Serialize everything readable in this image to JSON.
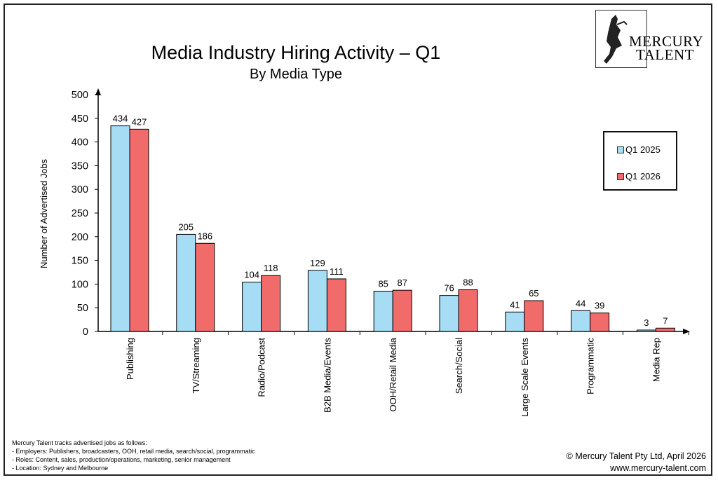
{
  "title": "Media Industry Hiring Activity – Q1",
  "subtitle": "By Media Type",
  "logo": {
    "line1": "MERCURY",
    "line2": "TALENT"
  },
  "notes": [
    "Mercury Talent tracks advertised jobs as follows:",
    "- Employers: Publishers, broadcasters, OOH, retail media, search/social, programmatic",
    "- Roles: Content, sales, production/operations, marketing, senior management",
    "- Location: Sydney and Melbourne"
  ],
  "copyright": "© Mercury Talent Pty Ltd, April 2026",
  "website": "www.mercury-talent.com",
  "chart_data": {
    "type": "bar",
    "title": "Media Industry Hiring Activity – Q1",
    "subtitle": "By Media Type",
    "xlabel": "",
    "ylabel": "Number of Advertised Jobs",
    "ylim": [
      0,
      500
    ],
    "yticks": [
      0,
      50,
      100,
      150,
      200,
      250,
      300,
      350,
      400,
      450,
      500
    ],
    "grid": false,
    "legend": "right",
    "categories": [
      "Publishing",
      "TV/Streaming",
      "Radio/Podcast",
      "B2B Media/Events",
      "OOH/Retail Media",
      "Search/Social",
      "Large Scale Events",
      "Programmatic",
      "Media Rep"
    ],
    "series": [
      {
        "name": "Q1 2025",
        "color": "#a6dcf4",
        "values": [
          434,
          205,
          104,
          129,
          85,
          76,
          41,
          44,
          3
        ]
      },
      {
        "name": "Q1 2026",
        "color": "#f26b6b",
        "values": [
          427,
          186,
          118,
          111,
          87,
          88,
          65,
          39,
          7
        ]
      }
    ]
  }
}
